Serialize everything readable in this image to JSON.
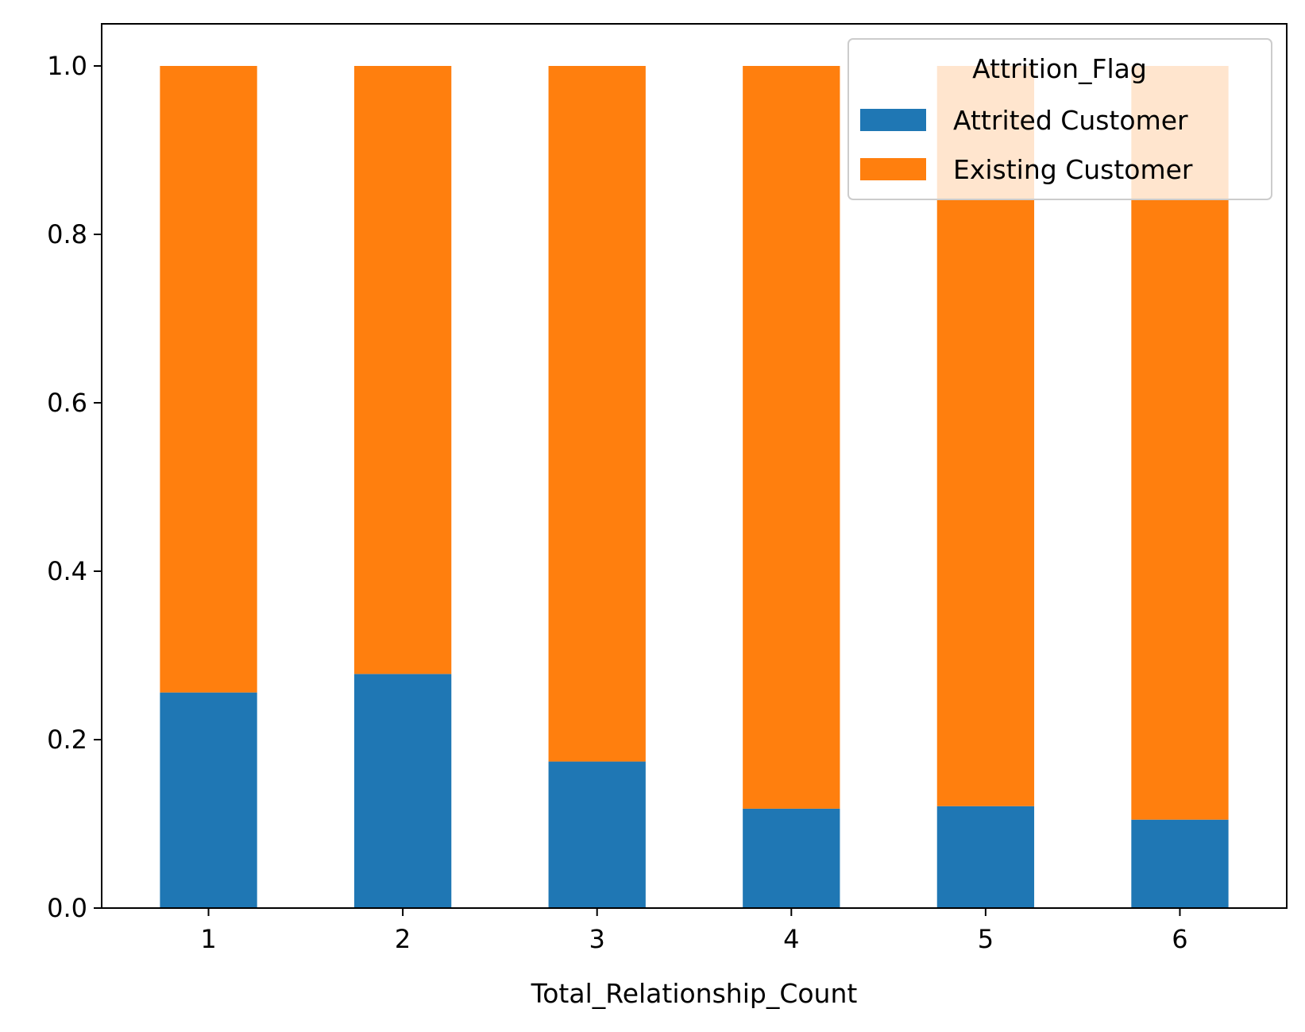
{
  "chart_data": {
    "type": "bar",
    "stacked": true,
    "categories": [
      "1",
      "2",
      "3",
      "4",
      "5",
      "6"
    ],
    "series": [
      {
        "name": "Attrited Customer",
        "color": "#1f77b4",
        "values": [
          0.256,
          0.278,
          0.174,
          0.118,
          0.121,
          0.105
        ]
      },
      {
        "name": "Existing Customer",
        "color": "#ff7f0e",
        "values": [
          0.744,
          0.722,
          0.826,
          0.882,
          0.879,
          0.895
        ]
      }
    ],
    "xlabel": "Total_Relationship_Count",
    "ylabel": "",
    "ylim": [
      0,
      1.05
    ],
    "yticks": [
      "0.0",
      "0.2",
      "0.4",
      "0.6",
      "0.8",
      "1.0"
    ],
    "grid": false,
    "legend": {
      "title": "Attrition_Flag",
      "position": "top-right"
    }
  }
}
